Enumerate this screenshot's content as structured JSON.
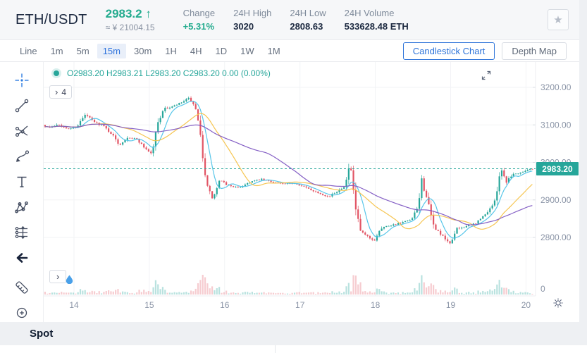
{
  "header": {
    "symbol": "ETH/USDT",
    "price": "2983.2",
    "arrow": "↑",
    "approx": "≈ ¥ 21004.15",
    "stats": [
      {
        "label": "Change",
        "value": "+5.31%"
      },
      {
        "label": "24H High",
        "value": "3020"
      },
      {
        "label": "24H Low",
        "value": "2808.63"
      },
      {
        "label": "24H Volume",
        "value": "533628.48 ETH"
      }
    ],
    "favorite_icon": "★"
  },
  "toolbar": {
    "intervals": [
      "Line",
      "1m",
      "5m",
      "15m",
      "30m",
      "1H",
      "4H",
      "1D",
      "1W",
      "1M"
    ],
    "active_interval": "15m",
    "chart_type_button": "Candlestick Chart",
    "depth_button": "Depth Map"
  },
  "chart": {
    "legend_ohlc": "O2983.20  H2983.21  L2983.20  C2983.20  0.00 (0.00%)",
    "indicator_badge_chevron": "›",
    "indicator_badge_count": "4",
    "volume_badge_chevron": "›"
  },
  "footer": {
    "label": "Spot"
  },
  "colors": {
    "accent_blue": "#2e74d9",
    "up_teal": "#26a69a",
    "down_red": "#e25565",
    "price_badge": "#26a69a",
    "axis_text": "#8a94a6",
    "grid": "#f2f3f6"
  },
  "chart_data": {
    "type": "candlestick",
    "symbol": "ETH/USDT",
    "interval": "15m",
    "x_ticks": [
      "14",
      "15",
      "16",
      "17",
      "18",
      "19",
      "20"
    ],
    "y_ticks": [
      "3200.00",
      "3100.00",
      "3000.00",
      "2900.00",
      "2800.00"
    ],
    "y_range": [
      2800,
      3200
    ],
    "volume_axis_label": "0",
    "last_price": 2983.2,
    "last_price_label": "2983.20",
    "ohlc_legend": {
      "open": "2983.20",
      "high": "2983.21",
      "low": "2983.20",
      "close": "2983.20",
      "change": "0.00",
      "change_pct": "0.00%"
    },
    "price_path": [
      [
        13.6,
        3100
      ],
      [
        13.7,
        3092
      ],
      [
        13.8,
        3103
      ],
      [
        13.92,
        3088
      ],
      [
        14.05,
        3095
      ],
      [
        14.17,
        3128
      ],
      [
        14.28,
        3108
      ],
      [
        14.4,
        3098
      ],
      [
        14.52,
        3075
      ],
      [
        14.62,
        3046
      ],
      [
        14.72,
        3068
      ],
      [
        14.85,
        3062
      ],
      [
        14.95,
        3040
      ],
      [
        15.05,
        3022
      ],
      [
        15.12,
        3100
      ],
      [
        15.2,
        3142
      ],
      [
        15.32,
        3148
      ],
      [
        15.45,
        3160
      ],
      [
        15.55,
        3172
      ],
      [
        15.63,
        3140
      ],
      [
        15.7,
        3060
      ],
      [
        15.78,
        2935
      ],
      [
        15.86,
        2902
      ],
      [
        15.95,
        2952
      ],
      [
        16.05,
        2940
      ],
      [
        16.2,
        2932
      ],
      [
        16.35,
        2948
      ],
      [
        16.5,
        2955
      ],
      [
        16.65,
        2948
      ],
      [
        16.8,
        2942
      ],
      [
        16.95,
        2945
      ],
      [
        17.1,
        2932
      ],
      [
        17.25,
        2920
      ],
      [
        17.4,
        2908
      ],
      [
        17.52,
        2925
      ],
      [
        17.62,
        2940
      ],
      [
        17.68,
        3002
      ],
      [
        17.74,
        2890
      ],
      [
        17.82,
        2815
      ],
      [
        17.92,
        2800
      ],
      [
        18.0,
        2790
      ],
      [
        18.08,
        2825
      ],
      [
        18.2,
        2832
      ],
      [
        18.35,
        2838
      ],
      [
        18.5,
        2848
      ],
      [
        18.58,
        2880
      ],
      [
        18.63,
        2952
      ],
      [
        18.7,
        2905
      ],
      [
        18.78,
        2832
      ],
      [
        18.9,
        2805
      ],
      [
        19.0,
        2782
      ],
      [
        19.1,
        2822
      ],
      [
        19.22,
        2830
      ],
      [
        19.35,
        2838
      ],
      [
        19.48,
        2862
      ],
      [
        19.6,
        2895
      ],
      [
        19.68,
        2988
      ],
      [
        19.75,
        2948
      ],
      [
        19.83,
        2968
      ],
      [
        19.92,
        2972
      ],
      [
        20.02,
        2980
      ],
      [
        20.1,
        2983
      ]
    ],
    "ma_windows": [
      7,
      22,
      48
    ],
    "ma_colors": [
      "#4fc3e8",
      "#f5c248",
      "#7e57c2"
    ],
    "up_color": "#26a69a",
    "down_color": "#e25565",
    "grid": true,
    "legend_position": "top-left"
  }
}
